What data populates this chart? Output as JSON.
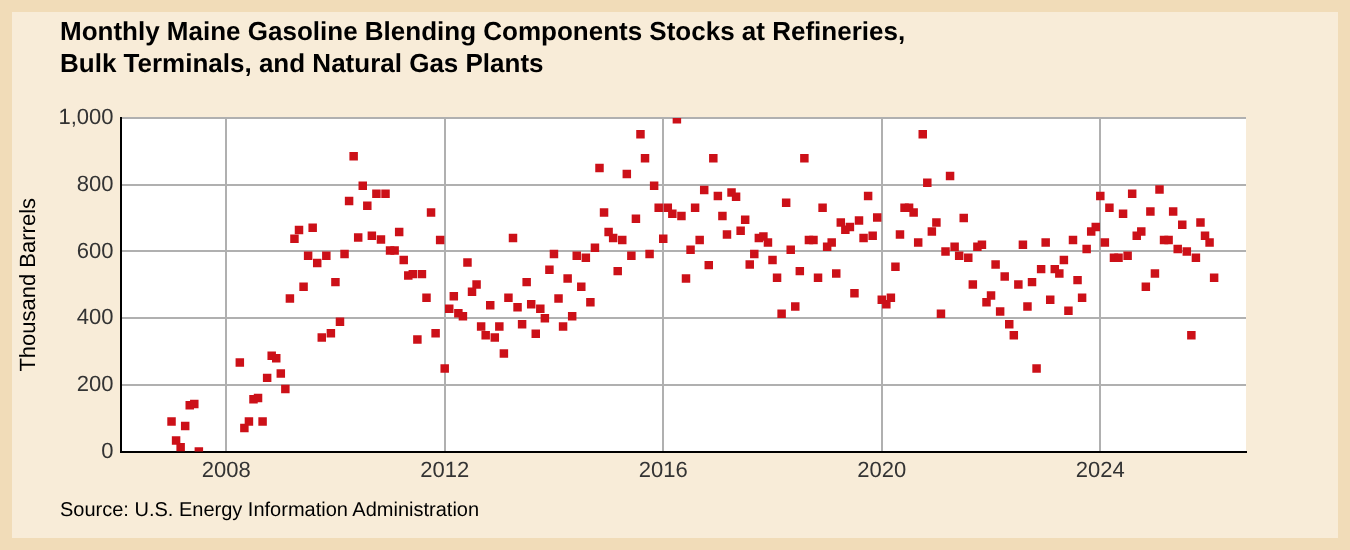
{
  "chart_data": {
    "type": "scatter",
    "title": "Monthly Maine Gasoline Blending Components Stocks at Refineries, Bulk Terminals, and Natural Gas Plants",
    "ylabel": "Thousand Barrels",
    "annotations": [
      "Source: U.S. Energy Information Administration"
    ],
    "x": [
      "2007-01",
      "2007-02",
      "2007-03",
      "2007-04",
      "2007-05",
      "2007-06",
      "2007-07",
      "2008-04",
      "2008-05",
      "2008-06",
      "2008-07",
      "2008-08",
      "2008-09",
      "2008-10",
      "2008-11",
      "2008-12",
      "2009-01",
      "2009-02",
      "2009-03",
      "2009-04",
      "2009-05",
      "2009-06",
      "2009-07",
      "2009-08",
      "2009-09",
      "2009-10",
      "2009-11",
      "2009-12",
      "2010-01",
      "2010-02",
      "2010-03",
      "2010-04",
      "2010-05",
      "2010-06",
      "2010-07",
      "2010-08",
      "2010-09",
      "2010-10",
      "2010-11",
      "2010-12",
      "2011-01",
      "2011-02",
      "2011-03",
      "2011-04",
      "2011-05",
      "2011-06",
      "2011-07",
      "2011-08",
      "2011-09",
      "2011-10",
      "2011-11",
      "2011-12",
      "2012-01",
      "2012-02",
      "2012-03",
      "2012-04",
      "2012-05",
      "2012-06",
      "2012-07",
      "2012-08",
      "2012-09",
      "2012-10",
      "2012-11",
      "2012-12",
      "2013-01",
      "2013-02",
      "2013-03",
      "2013-04",
      "2013-05",
      "2013-06",
      "2013-07",
      "2013-08",
      "2013-09",
      "2013-10",
      "2013-11",
      "2013-12",
      "2014-01",
      "2014-02",
      "2014-03",
      "2014-04",
      "2014-05",
      "2014-06",
      "2014-07",
      "2014-08",
      "2014-09",
      "2014-10",
      "2014-11",
      "2014-12",
      "2015-01",
      "2015-02",
      "2015-03",
      "2015-04",
      "2015-05",
      "2015-06",
      "2015-07",
      "2015-08",
      "2015-09",
      "2015-10",
      "2015-11",
      "2015-12",
      "2016-01",
      "2016-02",
      "2016-03",
      "2016-04",
      "2016-05",
      "2016-06",
      "2016-07",
      "2016-08",
      "2016-09",
      "2016-10",
      "2016-11",
      "2016-12",
      "2017-01",
      "2017-02",
      "2017-03",
      "2017-04",
      "2017-05",
      "2017-06",
      "2017-07",
      "2017-08",
      "2017-09",
      "2017-10",
      "2017-11",
      "2017-12",
      "2018-01",
      "2018-02",
      "2018-03",
      "2018-04",
      "2018-05",
      "2018-06",
      "2018-07",
      "2018-08",
      "2018-09",
      "2018-10",
      "2018-11",
      "2018-12",
      "2019-01",
      "2019-02",
      "2019-03",
      "2019-04",
      "2019-05",
      "2019-06",
      "2019-07",
      "2019-08",
      "2019-09",
      "2019-10",
      "2019-11",
      "2019-12",
      "2020-01",
      "2020-02",
      "2020-03",
      "2020-04",
      "2020-05",
      "2020-06",
      "2020-07",
      "2020-08",
      "2020-09",
      "2020-10",
      "2020-11",
      "2020-12",
      "2021-01",
      "2021-02",
      "2021-03",
      "2021-04",
      "2021-05",
      "2021-06",
      "2021-07",
      "2021-08",
      "2021-09",
      "2021-10",
      "2021-11",
      "2021-12",
      "2022-01",
      "2022-02",
      "2022-03",
      "2022-04",
      "2022-05",
      "2022-06",
      "2022-07",
      "2022-08",
      "2022-09",
      "2022-10",
      "2022-11",
      "2022-12",
      "2023-01",
      "2023-02",
      "2023-03",
      "2023-04",
      "2023-05",
      "2023-06",
      "2023-07",
      "2023-08",
      "2023-09",
      "2023-10",
      "2023-11",
      "2023-12",
      "2024-01",
      "2024-02",
      "2024-03",
      "2024-04",
      "2024-05",
      "2024-06",
      "2024-07",
      "2024-08",
      "2024-09",
      "2024-10",
      "2024-11",
      "2024-12",
      "2025-01",
      "2025-02",
      "2025-03",
      "2025-04",
      "2025-05",
      "2025-06",
      "2025-07",
      "2025-08",
      "2025-09",
      "2025-10",
      "2025-11",
      "2025-12",
      "2026-01",
      "2026-02"
    ],
    "values": [
      90,
      33,
      13,
      77,
      139,
      143,
      0,
      267,
      71,
      90,
      157,
      161,
      90,
      221,
      287,
      280,
      234,
      188,
      459,
      638,
      664,
      494,
      587,
      671,
      565,
      342,
      587,
      355,
      508,
      389,
      592,
      751,
      885,
      642,
      797,
      737,
      647,
      773,
      636,
      773,
      603,
      603,
      658,
      574,
      528,
      532,
      336,
      532,
      461,
      717,
      355,
      634,
      249,
      428,
      466,
      415,
      406,
      567,
      479,
      501,
      375,
      349,
      439,
      342,
      375,
      294,
      461,
      640,
      433,
      382,
      508,
      442,
      353,
      428,
      400,
      545,
      592,
      459,
      375,
      519,
      406,
      587,
      494,
      581,
      448,
      611,
      850,
      717,
      658,
      640,
      541,
      634,
      832,
      587,
      698,
      951,
      879,
      592,
      797,
      731,
      638,
      731,
      713,
      996,
      706,
      519,
      605,
      731,
      634,
      784,
      559,
      879,
      766,
      706,
      651,
      777,
      764,
      662,
      695,
      561,
      592,
      640,
      645,
      627,
      574,
      521,
      413,
      746,
      605,
      435,
      541,
      879,
      634,
      634,
      521,
      731,
      614,
      627,
      534,
      687,
      665,
      673,
      475,
      693,
      640,
      766,
      647,
      702,
      455,
      442,
      461,
      554,
      651,
      731,
      731,
      717,
      627,
      951,
      806,
      660,
      687,
      413,
      600,
      826,
      614,
      587,
      700,
      581,
      501,
      614,
      620,
      448,
      468,
      561,
      420,
      525,
      382,
      349,
      501,
      620,
      435,
      508,
      249,
      547,
      627,
      455,
      547,
      534,
      574,
      422,
      634,
      514,
      461,
      607,
      660,
      673,
      766,
      627,
      731,
      581,
      581,
      713,
      587,
      773,
      647,
      660,
      494,
      720,
      534,
      786,
      634,
      634,
      720,
      607,
      680,
      600,
      349,
      581,
      687,
      647,
      627,
      521
    ],
    "color": "#cc1018",
    "marker": "square",
    "grid": true,
    "xlim": [
      "2006-02",
      "2026-09"
    ],
    "xticks": [
      "2008",
      "2012",
      "2016",
      "2020",
      "2024"
    ],
    "ylim": [
      0,
      1000
    ],
    "yticks": [
      0,
      200,
      400,
      600,
      800,
      {
        "value": 1000,
        "label": "1,000"
      }
    ]
  }
}
